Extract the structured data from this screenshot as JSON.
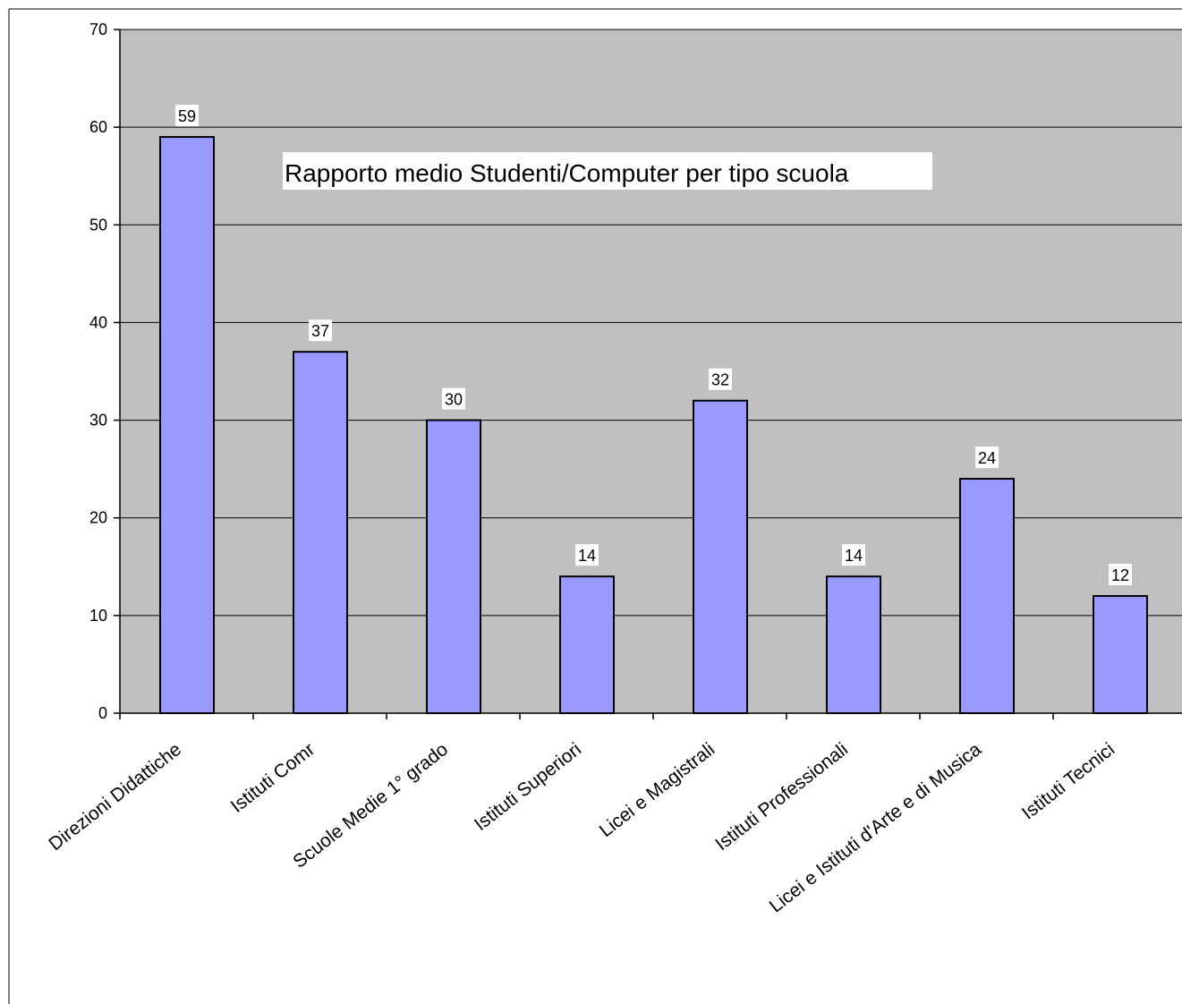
{
  "chart_data": {
    "type": "bar",
    "title": "Rapporto medio Studenti/Computer per tipo scuola",
    "xlabel": "",
    "ylabel": "",
    "categories": [
      "Direzioni Didattiche",
      "Istituti Comr",
      "Scuole Medie 1° grado",
      "Istituti Superiori",
      "Licei e Magistrali",
      "Istituti Professionali",
      "Licei e Istituti d'Arte e di Musica",
      "Istituti Tecnici"
    ],
    "values": [
      59,
      37,
      30,
      14,
      32,
      14,
      24,
      12
    ],
    "data_labels": [
      "59",
      "37",
      "30",
      "14",
      "32",
      "14",
      "24",
      "12"
    ],
    "y_ticks": [
      "0",
      "10",
      "20",
      "30",
      "40",
      "50",
      "60",
      "70"
    ],
    "ylim": [
      0,
      70
    ],
    "grid": true,
    "legend": "none",
    "colors": {
      "plot_background": "#c0c0c0",
      "bar_fill": "#9999ff",
      "bar_stroke": "#000000",
      "gridline": "#000000",
      "label_background": "#ffffff"
    }
  }
}
